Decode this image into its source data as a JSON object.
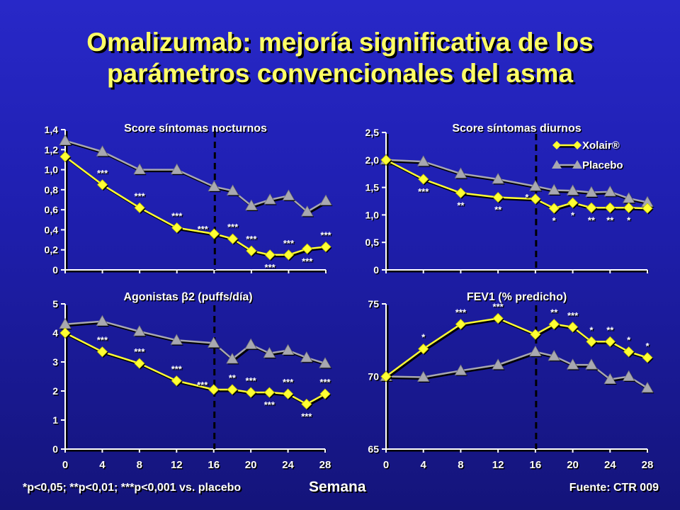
{
  "slide": {
    "title_line1": "Omalizumab: mejoría significativa de  los",
    "title_line2": "parámetros convencionales del asma",
    "footnote": "*p<0,05; **p<0,01; ***p<0,001 vs. placebo",
    "x_label": "Semana",
    "source": "Fuente: CTR 009"
  },
  "colors": {
    "xolair": "#ffff33",
    "placebo": "#a8a8b0",
    "background": "#2020b8",
    "title": "#ffff66"
  },
  "legend": [
    {
      "name": "Xolair®",
      "marker": "diamond"
    },
    {
      "name": "Placebo",
      "marker": "triangle"
    }
  ],
  "chart_data": [
    {
      "type": "line",
      "title": "Score síntomas nocturnos",
      "x_ticks": [
        0,
        4,
        8,
        12,
        16,
        20,
        24,
        28
      ],
      "x_tick_labels": [],
      "ylim": [
        0,
        1.4
      ],
      "y_ticks": [
        "0",
        "0,2",
        "0,4",
        "0,6",
        "0,8",
        "1,0",
        "1,2",
        "1,4"
      ],
      "divider_week": 16,
      "series": [
        {
          "name": "Placebo",
          "x": [
            0,
            4,
            8,
            12,
            16,
            18,
            20,
            22,
            24,
            26,
            28
          ],
          "y": [
            1.29,
            1.18,
            1.0,
            1.0,
            0.83,
            0.79,
            0.64,
            0.7,
            0.74,
            0.58,
            0.69
          ]
        },
        {
          "name": "Xolair®",
          "x": [
            0,
            4,
            8,
            12,
            16,
            18,
            20,
            22,
            24,
            26,
            28
          ],
          "y": [
            1.13,
            0.85,
            0.62,
            0.42,
            0.36,
            0.31,
            0.19,
            0.15,
            0.15,
            0.21,
            0.23
          ]
        }
      ],
      "annotations": [
        {
          "x": 4,
          "y": 0.85,
          "text": "***",
          "pos": "above"
        },
        {
          "x": 8,
          "y": 0.62,
          "text": "***",
          "pos": "above"
        },
        {
          "x": 12,
          "y": 0.42,
          "text": "***",
          "pos": "above"
        },
        {
          "x": 16,
          "y": 0.36,
          "text": "***",
          "pos": "above-left"
        },
        {
          "x": 18,
          "y": 0.31,
          "text": "***",
          "pos": "above"
        },
        {
          "x": 20,
          "y": 0.19,
          "text": "***",
          "pos": "above"
        },
        {
          "x": 22,
          "y": 0.15,
          "text": "***",
          "pos": "below"
        },
        {
          "x": 24,
          "y": 0.15,
          "text": "***",
          "pos": "above"
        },
        {
          "x": 26,
          "y": 0.21,
          "text": "***",
          "pos": "below"
        },
        {
          "x": 28,
          "y": 0.23,
          "text": "***",
          "pos": "above"
        }
      ]
    },
    {
      "type": "line",
      "title": "Score síntomas diurnos",
      "x_ticks": [
        0,
        4,
        8,
        12,
        16,
        20,
        24,
        28
      ],
      "x_tick_labels": [],
      "ylim": [
        0,
        2.5
      ],
      "y_ticks": [
        "0",
        "0,5",
        "1,0",
        "1,5",
        "2,0",
        "2,5"
      ],
      "divider_week": 16,
      "legend_position": "top-right",
      "series": [
        {
          "name": "Placebo",
          "x": [
            0,
            4,
            8,
            12,
            16,
            18,
            20,
            22,
            24,
            26,
            28
          ],
          "y": [
            2.0,
            1.97,
            1.75,
            1.65,
            1.52,
            1.45,
            1.44,
            1.41,
            1.42,
            1.3,
            1.23
          ]
        },
        {
          "name": "Xolair®",
          "x": [
            0,
            4,
            8,
            12,
            16,
            18,
            20,
            22,
            24,
            26,
            28
          ],
          "y": [
            2.0,
            1.65,
            1.4,
            1.32,
            1.29,
            1.12,
            1.22,
            1.13,
            1.13,
            1.13,
            1.12
          ]
        }
      ],
      "annotations": [
        {
          "x": 4,
          "y": 1.65,
          "text": "***",
          "pos": "below"
        },
        {
          "x": 8,
          "y": 1.4,
          "text": "**",
          "pos": "below"
        },
        {
          "x": 12,
          "y": 1.32,
          "text": "**",
          "pos": "below"
        },
        {
          "x": 16,
          "y": 1.29,
          "text": "*",
          "pos": "below-left"
        },
        {
          "x": 18,
          "y": 1.12,
          "text": "*",
          "pos": "below"
        },
        {
          "x": 20,
          "y": 1.22,
          "text": "*",
          "pos": "below"
        },
        {
          "x": 22,
          "y": 1.13,
          "text": "**",
          "pos": "below"
        },
        {
          "x": 24,
          "y": 1.13,
          "text": "**",
          "pos": "below"
        },
        {
          "x": 26,
          "y": 1.13,
          "text": "*",
          "pos": "below"
        }
      ]
    },
    {
      "type": "line",
      "title": "Agonistas  β2 (puffs/día)",
      "x_ticks": [
        0,
        4,
        8,
        12,
        16,
        20,
        24,
        28
      ],
      "x_tick_labels": [
        "0",
        "4",
        "8",
        "12",
        "16",
        "20",
        "24",
        "28"
      ],
      "ylim": [
        0,
        5
      ],
      "y_ticks": [
        "0",
        "1",
        "2",
        "3",
        "4",
        "5"
      ],
      "divider_week": 16,
      "series": [
        {
          "name": "Placebo",
          "x": [
            0,
            4,
            8,
            12,
            16,
            18,
            20,
            22,
            24,
            26,
            28
          ],
          "y": [
            4.3,
            4.4,
            4.05,
            3.75,
            3.65,
            3.1,
            3.6,
            3.3,
            3.4,
            3.15,
            2.95
          ]
        },
        {
          "name": "Xolair®",
          "x": [
            0,
            4,
            8,
            12,
            16,
            18,
            20,
            22,
            24,
            26,
            28
          ],
          "y": [
            4.0,
            3.35,
            2.95,
            2.35,
            2.05,
            2.05,
            1.95,
            1.95,
            1.9,
            1.55,
            1.9
          ]
        }
      ],
      "annotations": [
        {
          "x": 4,
          "y": 3.35,
          "text": "***",
          "pos": "above"
        },
        {
          "x": 8,
          "y": 2.95,
          "text": "***",
          "pos": "above"
        },
        {
          "x": 12,
          "y": 2.35,
          "text": "***",
          "pos": "above"
        },
        {
          "x": 16,
          "y": 2.05,
          "text": "***",
          "pos": "above-left"
        },
        {
          "x": 18,
          "y": 2.05,
          "text": "**",
          "pos": "above"
        },
        {
          "x": 20,
          "y": 1.95,
          "text": "***",
          "pos": "above"
        },
        {
          "x": 22,
          "y": 1.95,
          "text": "***",
          "pos": "below"
        },
        {
          "x": 24,
          "y": 1.9,
          "text": "***",
          "pos": "above"
        },
        {
          "x": 26,
          "y": 1.55,
          "text": "***",
          "pos": "below"
        },
        {
          "x": 28,
          "y": 1.9,
          "text": "***",
          "pos": "above"
        }
      ]
    },
    {
      "type": "line",
      "title": "FEV1 (% predicho)",
      "x_ticks": [
        0,
        4,
        8,
        12,
        16,
        20,
        24,
        28
      ],
      "x_tick_labels": [
        "0",
        "4",
        "8",
        "12",
        "16",
        "20",
        "24",
        "28"
      ],
      "ylim": [
        65,
        75
      ],
      "y_ticks": [
        "65",
        "70",
        "75"
      ],
      "divider_week": 16,
      "series": [
        {
          "name": "Placebo",
          "x": [
            0,
            4,
            8,
            12,
            16,
            18,
            20,
            22,
            24,
            26,
            28
          ],
          "y": [
            70.0,
            69.95,
            70.4,
            70.8,
            71.7,
            71.4,
            70.8,
            70.8,
            69.8,
            70.0,
            69.2
          ]
        },
        {
          "name": "Xolair®",
          "x": [
            0,
            4,
            8,
            12,
            16,
            18,
            20,
            22,
            24,
            26,
            28
          ],
          "y": [
            70.0,
            71.9,
            73.6,
            74.0,
            72.9,
            73.6,
            73.4,
            72.4,
            72.4,
            71.7,
            71.3
          ]
        }
      ],
      "annotations": [
        {
          "x": 4,
          "y": 71.9,
          "text": "*",
          "pos": "above"
        },
        {
          "x": 8,
          "y": 73.6,
          "text": "***",
          "pos": "above"
        },
        {
          "x": 12,
          "y": 74.0,
          "text": "***",
          "pos": "above"
        },
        {
          "x": 18,
          "y": 73.6,
          "text": "**",
          "pos": "above"
        },
        {
          "x": 20,
          "y": 73.4,
          "text": "***",
          "pos": "above"
        },
        {
          "x": 22,
          "y": 72.4,
          "text": "*",
          "pos": "above"
        },
        {
          "x": 24,
          "y": 72.4,
          "text": "**",
          "pos": "above"
        },
        {
          "x": 26,
          "y": 71.7,
          "text": "*",
          "pos": "above"
        },
        {
          "x": 28,
          "y": 71.3,
          "text": "*",
          "pos": "above"
        }
      ]
    }
  ]
}
